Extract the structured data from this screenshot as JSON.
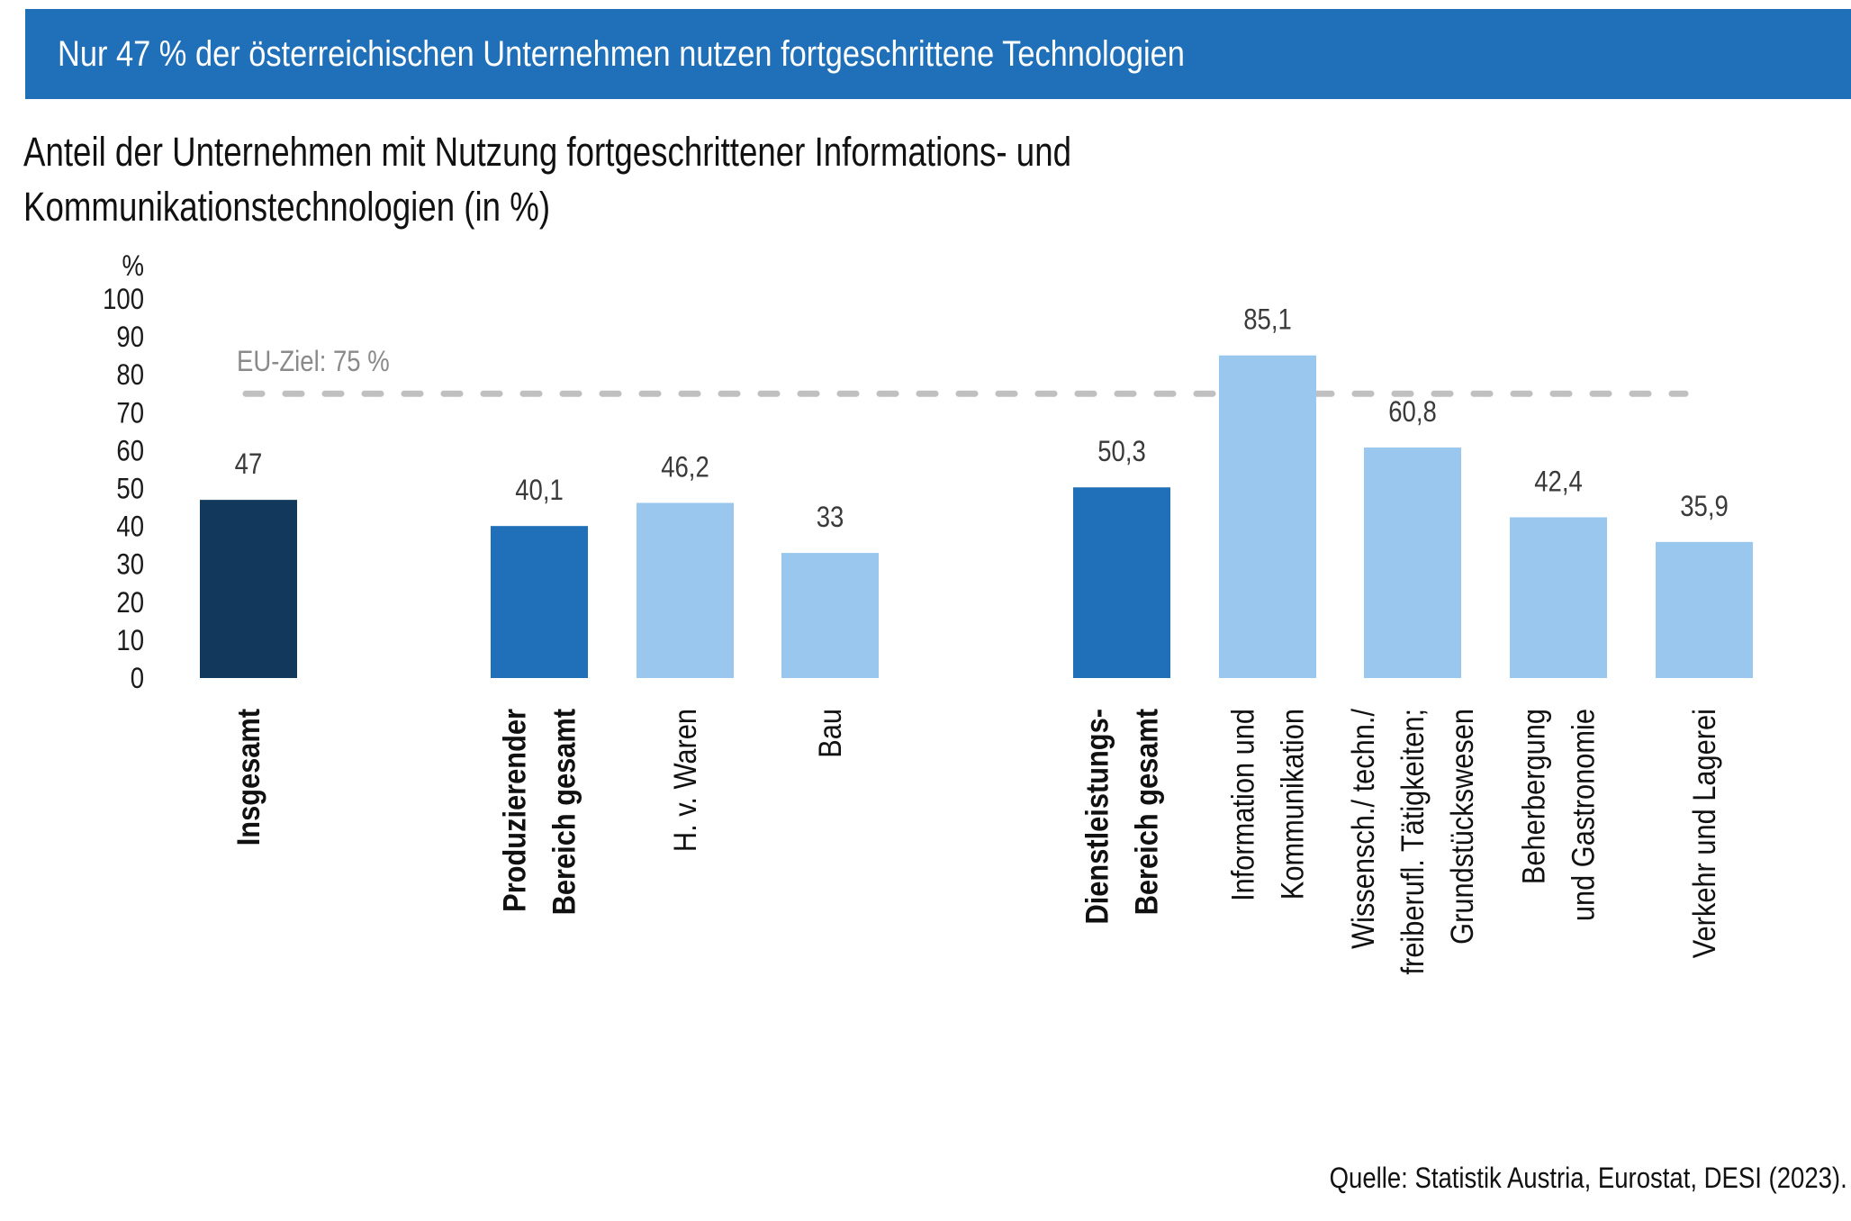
{
  "header": {
    "title": "Nur 47 % der österreichischen Unternehmen nutzen fortgeschrittene Technologien"
  },
  "chart_data": {
    "type": "bar",
    "title": "Anteil der Unternehmen mit Nutzung fortgeschrittener Informations- und Kommunikationstechnologien (in %)",
    "title_lines": [
      "Anteil der Unternehmen mit Nutzung fortgeschrittener Informations- und",
      "Kommunikationstechnologien (in %)"
    ],
    "ylabel": "%",
    "xlabel": "",
    "ylim": [
      0,
      100
    ],
    "yticks": [
      0,
      10,
      20,
      30,
      40,
      50,
      60,
      70,
      80,
      90,
      100
    ],
    "grid": false,
    "categories": [
      "Insgesamt",
      "Produzierender Bereich gesamt",
      "H. v. Waren",
      "Bau",
      "Dienstleistungs-Bereich gesamt",
      "Information und Kommunikation",
      "Wissensch./ techn./ freiberufl. Tätigkeiten; Grundstückswesen",
      "Beherbergung und Gastronomie",
      "Verkehr und Lagerei"
    ],
    "category_lines": [
      [
        "Insgesamt"
      ],
      [
        "Produzierender",
        "Bereich gesamt"
      ],
      [
        "H. v. Waren"
      ],
      [
        "Bau"
      ],
      [
        "Dienstleistungs-",
        "Bereich gesamt"
      ],
      [
        "Information und",
        "Kommunikation"
      ],
      [
        "Wissensch./ techn./",
        "freiberufl. Tätigkeiten;",
        "Grundstückswesen"
      ],
      [
        "Beherbergung",
        "und Gastronomie"
      ],
      [
        "Verkehr und Lagerei"
      ]
    ],
    "category_bold": [
      true,
      true,
      false,
      false,
      true,
      false,
      false,
      false,
      false
    ],
    "values": [
      47,
      40.1,
      46.2,
      33,
      50.3,
      85.1,
      60.8,
      42.4,
      35.9
    ],
    "value_labels": [
      "47",
      "40,1",
      "46,2",
      "33",
      "50,3",
      "85,1",
      "60,8",
      "42,4",
      "35,9"
    ],
    "bar_levels": [
      "total",
      "sector",
      "sub",
      "sub",
      "sector",
      "sub",
      "sub",
      "sub",
      "sub"
    ],
    "groups": [
      {
        "name": "Insgesamt",
        "members": [
          0
        ]
      },
      {
        "name": "Produzierender Bereich",
        "members": [
          1,
          2,
          3
        ]
      },
      {
        "name": "Dienstleistungsbereich",
        "members": [
          4,
          5,
          6,
          7,
          8
        ]
      }
    ],
    "colors": {
      "total": "#12385c",
      "sector": "#1f70b8",
      "sub": "#99c7ee",
      "reference_line": "#c0c0c0"
    },
    "reference_line": {
      "value": 75,
      "label": "EU-Ziel: 75 %",
      "style": "dashed"
    },
    "source": "Quelle: Statistik Austria, Eurostat, DESI (2023)."
  }
}
